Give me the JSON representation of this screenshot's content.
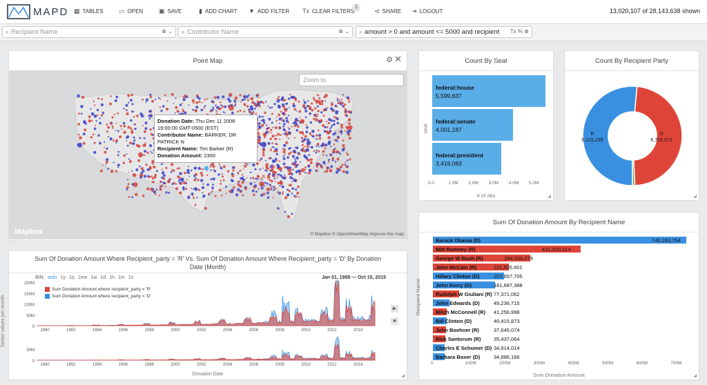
{
  "topbar": {
    "logo_text": "MAPD",
    "buttons": [
      {
        "label": "TABLES",
        "icon": "table-icon"
      },
      {
        "label": "OPEN",
        "icon": "folder-icon"
      },
      {
        "label": "SAVE",
        "icon": "save-icon"
      },
      {
        "label": "ADD CHART",
        "icon": "bar-chart-icon"
      },
      {
        "label": "ADD FILTER",
        "icon": "filter-icon"
      },
      {
        "label": "CLEAR FILTERS",
        "icon": "clear-filter-icon"
      },
      {
        "label": "SHARE",
        "icon": "share-icon"
      },
      {
        "label": "LOGOUT",
        "icon": "logout-icon"
      }
    ],
    "filter_count": "1",
    "shown_count": "13,020,107",
    "shown_suffix": "of 28,143,638 shown"
  },
  "filters": {
    "recipient_placeholder": "Recipient Name",
    "contributor_placeholder": "Contributor Name",
    "custom_filter_value": "amount > 0 and amount <= 5000 and recipient_",
    "custom_filter_controls": "Tx %"
  },
  "point_map": {
    "title": "Point Map",
    "zoom_placeholder": "Zoom to",
    "tooltip": {
      "date_label": "Donation Date:",
      "date_value": "Thu Dec 11 2008 19:00:00 GMT-0500 (EST)",
      "contributor_label": "Contributor Name:",
      "contributor_value": "BARKER, DR PATRICK N",
      "recipient_label": "Recipient Name:",
      "recipient_value": "Tim Barker (R)",
      "amount_label": "Donation Amount:",
      "amount_value": "2300"
    },
    "brand": "Mapbox",
    "attribution": "© Mapbox © OpenStreetMap  Improve this map"
  },
  "seat_chart": {
    "title": "Count By Seat",
    "ylabel": "seat",
    "xlabel": "# of obs",
    "ticks": [
      "0.0",
      "1.0M",
      "2.0M",
      "3.0M",
      "4.0M",
      "5.0M"
    ],
    "bars": [
      {
        "label": "federal:house",
        "value_text": "5,599,837",
        "value": 5599837
      },
      {
        "label": "federal:senate",
        "value_text": "4,001,187",
        "value": 4001187
      },
      {
        "label": "federal:president",
        "value_text": "3,419,083",
        "value": 3419083
      }
    ]
  },
  "party_chart": {
    "title": "Count By Recipient Party",
    "slices": [
      {
        "label": "R",
        "value_text": "6,215,239",
        "value": 6215239,
        "color": "#de4538"
      },
      {
        "label": "D",
        "value_text": "6,702,372",
        "value": 6702372,
        "color": "#3a90e0"
      },
      {
        "label": "",
        "value": 102496,
        "color": "#7aa04a"
      }
    ]
  },
  "recipient_chart": {
    "title": "Sum Of Donation Amount By Recipient Name",
    "ylabel": "Recipient Name",
    "xlabel": "Sum Donation Amount",
    "ticks": [
      "0",
      "100M",
      "200M",
      "300M",
      "400M",
      "500M",
      "600M",
      "700M"
    ],
    "rows": [
      {
        "name": "Barack Obama (D)",
        "value_text": "740,263,754",
        "value": 740263754,
        "party": "D"
      },
      {
        "name": "Mitt Romney (R)",
        "value_text": "431,320,314",
        "value": 431320314,
        "party": "R"
      },
      {
        "name": "George W Bush (R)",
        "value_text": "284,536,079",
        "value": 284536079,
        "party": "R"
      },
      {
        "name": "John McCain (R)",
        "value_text": "221,935,601",
        "value": 221935601,
        "party": "R"
      },
      {
        "name": "Hillary Clinton (D)",
        "value_text": "207,657,705",
        "value": 207657705,
        "party": "D"
      },
      {
        "name": "John Kerry (D)",
        "value_text": "181,687,388",
        "value": 181687388,
        "party": "D"
      },
      {
        "name": "Rudolph W Giuliani (R)",
        "value_text": "77,371,062",
        "value": 77371062,
        "party": "R"
      },
      {
        "name": "John Edwards (D)",
        "value_text": "49,236,715",
        "value": 49236715,
        "party": "D"
      },
      {
        "name": "Mitch McConnell (R)",
        "value_text": "41,256,998",
        "value": 41256998,
        "party": "R"
      },
      {
        "name": "Bill Clinton (D)",
        "value_text": "40,415,873",
        "value": 40415873,
        "party": "D"
      },
      {
        "name": "John Boehner (R)",
        "value_text": "37,645,074",
        "value": 37645074,
        "party": "R"
      },
      {
        "name": "Rick Santorum (R)",
        "value_text": "35,437,064",
        "value": 35437064,
        "party": "R"
      },
      {
        "name": "Charles E Schumer (D)",
        "value_text": "34,914,014",
        "value": 34914014,
        "party": "D"
      },
      {
        "name": "Barbara Boxer (D)",
        "value_text": "34,886,166",
        "value": 34886166,
        "party": "D"
      }
    ]
  },
  "timeline": {
    "title": "Sum Of Donation Amount Where Recipient_party = 'R' Vs. Sum Of Donation Amount Where Recipient_party = 'D' By Donation Date (Month)",
    "bin_label": "BIN:",
    "bins": [
      "auto",
      "1y",
      "1q",
      "1mo",
      "1w",
      "1d",
      "1h",
      "1m",
      "1s"
    ],
    "date_range": "Jan 01, 1989  —  Oct 15, 2015",
    "ylabel": "Series values per month",
    "xlabel": "Donation Date",
    "yticks": [
      "200M",
      "150M",
      "100M",
      "50M",
      "0"
    ],
    "yticks_small": [
      "50M",
      "0"
    ],
    "xticks": [
      "1990",
      "1992",
      "1994",
      "1996",
      "1998",
      "2000",
      "2002",
      "2004",
      "2006",
      "2008",
      "2010",
      "2012",
      "2014"
    ],
    "legend": [
      {
        "label": "Sum Donation Amount where recipient_party = 'R'",
        "color": "#de4538"
      },
      {
        "label": "Sum Donation Amount where recipient_party = 'D'",
        "color": "#3a90e0"
      }
    ]
  },
  "colors": {
    "R": "#de4538",
    "D": "#3a90e0",
    "seat": "#5aaee8"
  }
}
